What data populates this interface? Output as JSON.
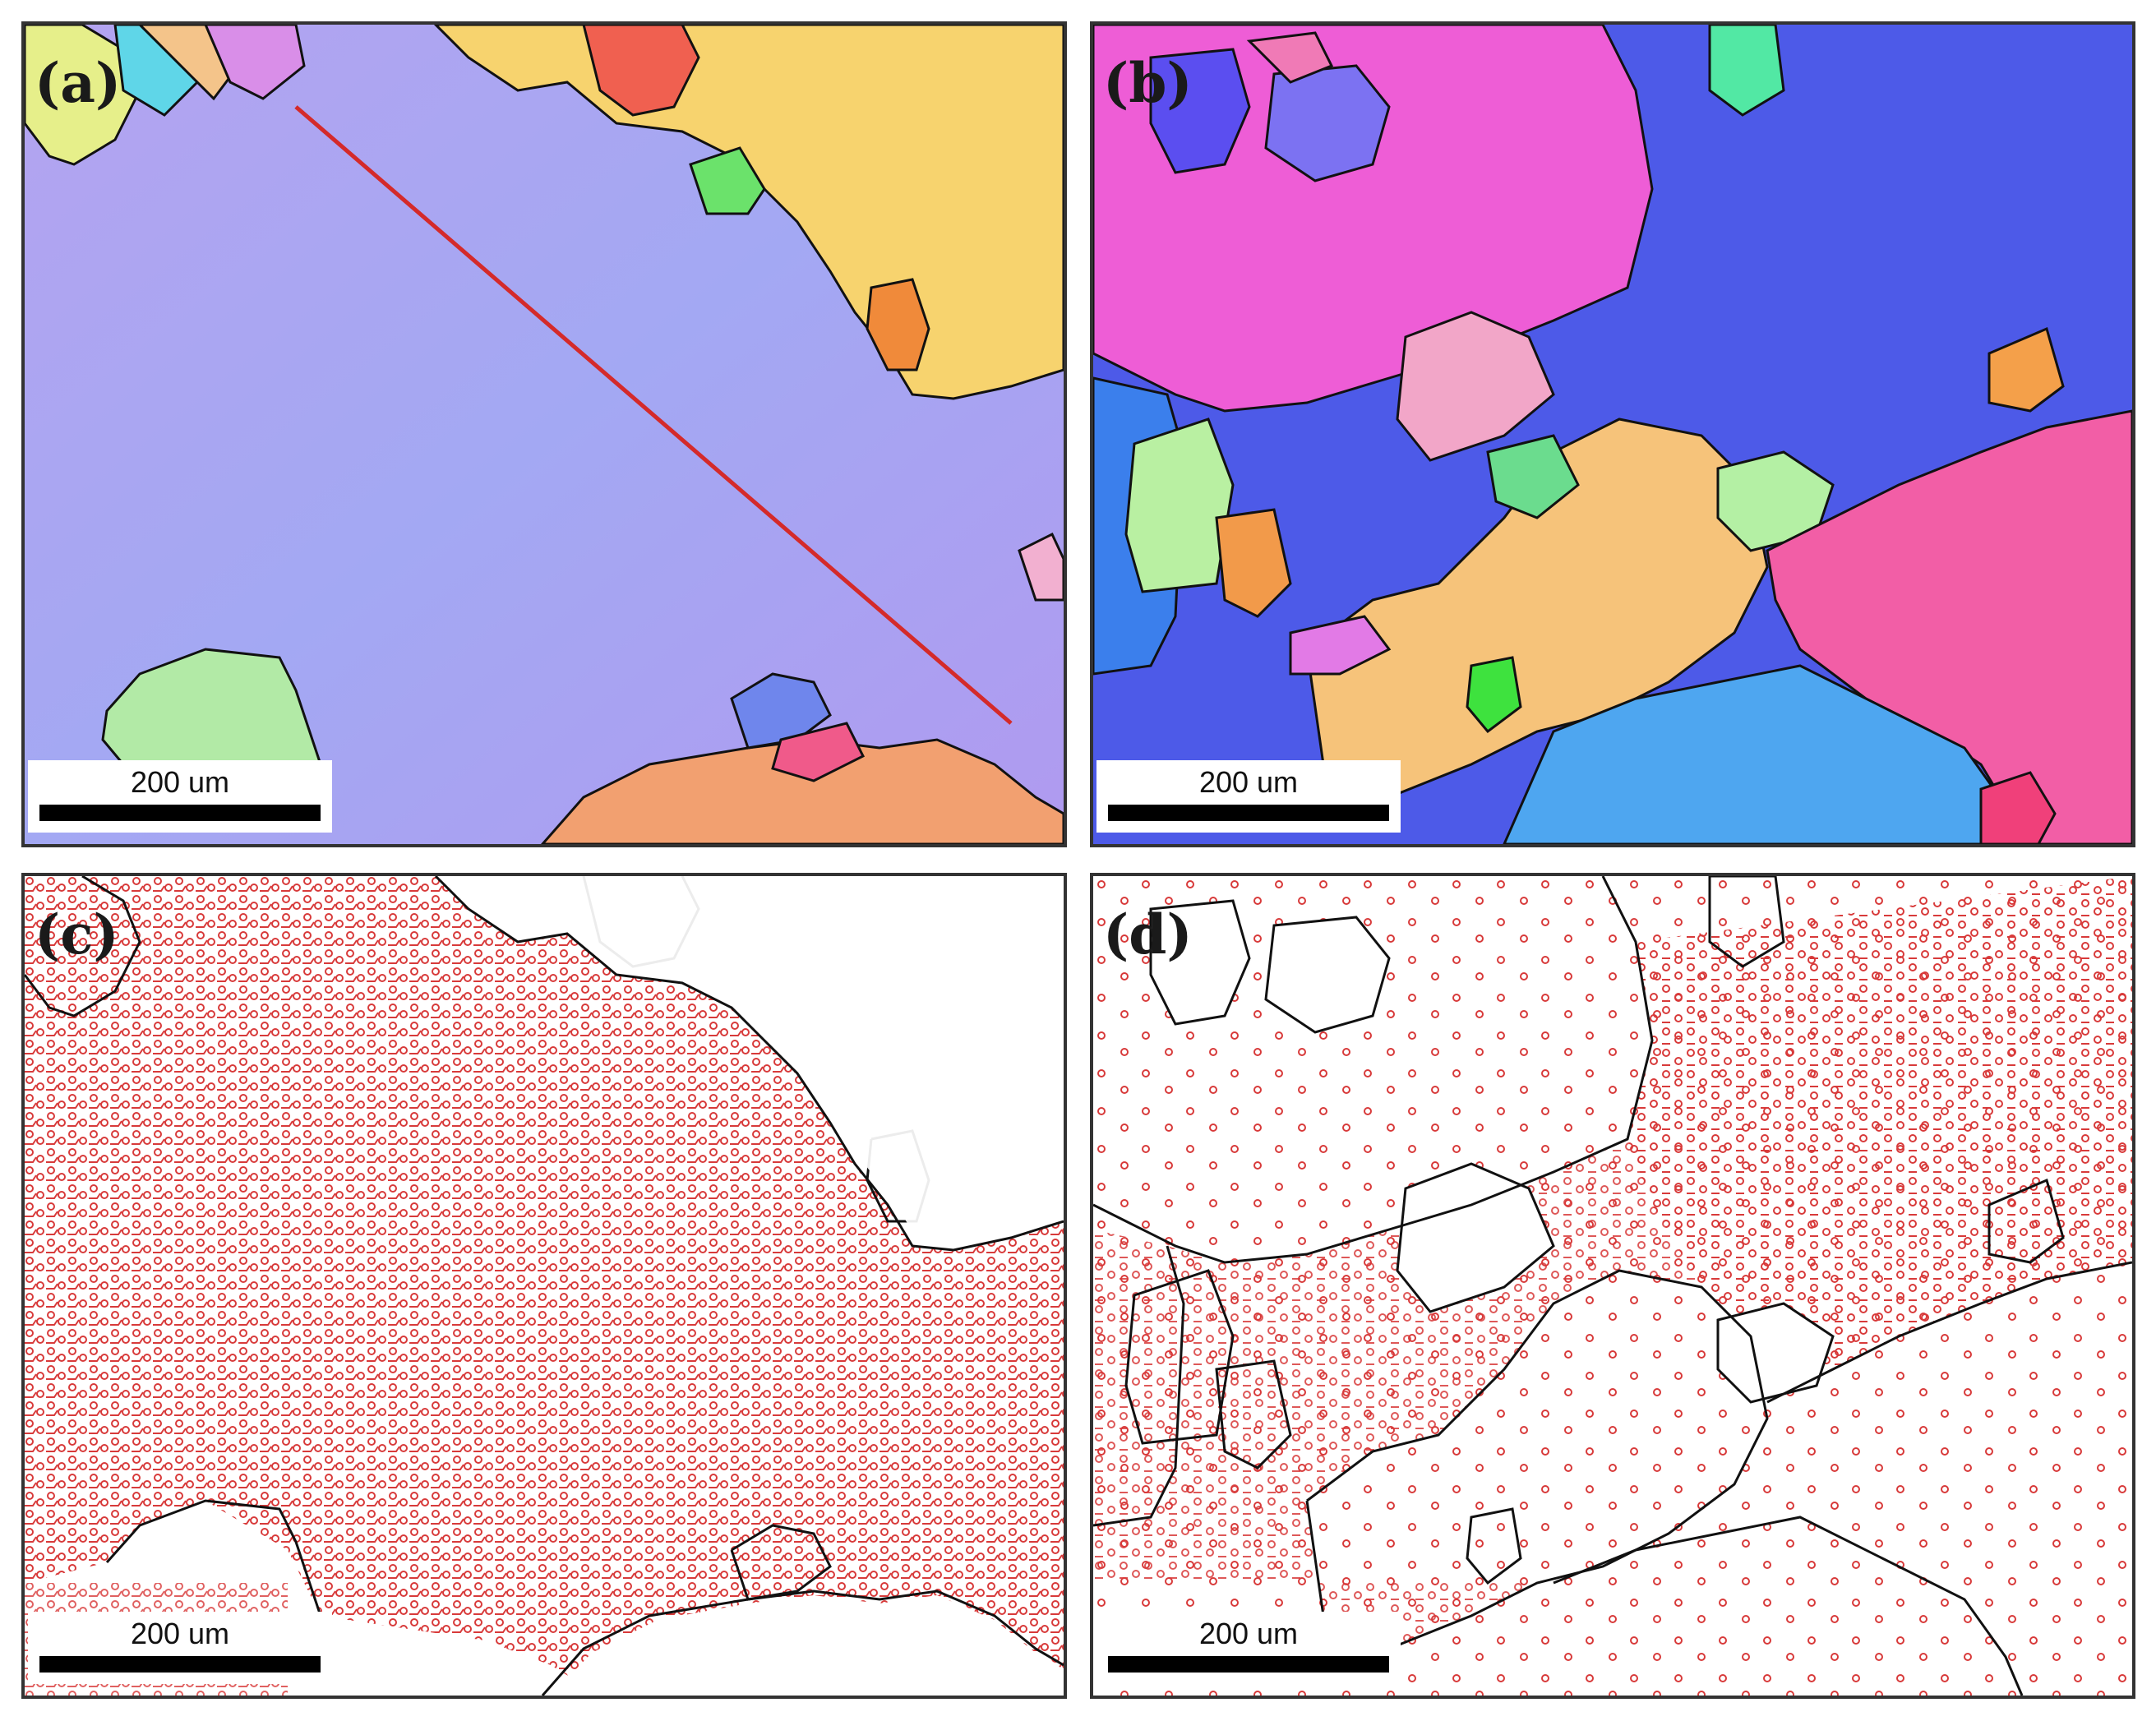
{
  "panels": [
    {
      "id": "a",
      "label": "(a)",
      "scale_label": "200 um"
    },
    {
      "id": "b",
      "label": "(b)",
      "scale_label": "200 um"
    },
    {
      "id": "c",
      "label": "(c)",
      "scale_label": "200 um"
    },
    {
      "id": "d",
      "label": "(d)",
      "scale_label": "200 um"
    }
  ],
  "colors": {
    "matrix_violet": "#a99cf2",
    "boundary": "#111111",
    "line_profile": "#d42a2a",
    "low_angle_boundary_red": "#d83a3a"
  }
}
